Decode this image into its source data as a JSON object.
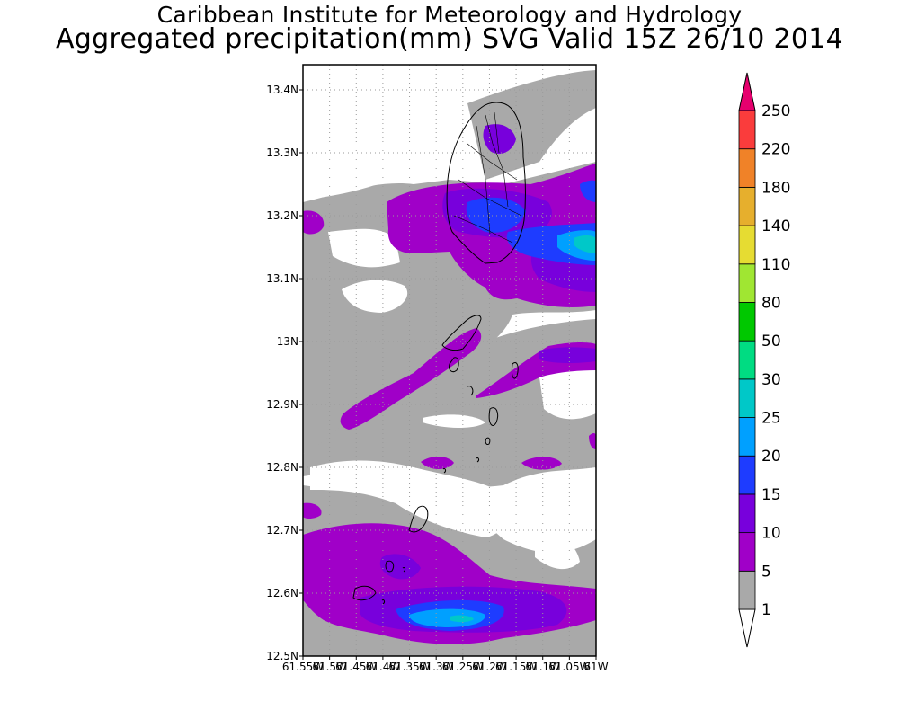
{
  "title": "Caribbean Institute for Meteorology and Hydrology",
  "subtitle": "Aggregated precipitation(mm) SVG Valid 15Z 26/10 2014",
  "map": {
    "lat_ticks": [
      "13.4N",
      "13.3N",
      "13.2N",
      "13.1N",
      "13N",
      "12.9N",
      "12.8N",
      "12.7N",
      "12.6N",
      "12.5N"
    ],
    "lon_ticks": [
      "61.55W",
      "61.5W",
      "61.45W",
      "61.4W",
      "61.35W",
      "61.3W",
      "61.25W",
      "61.2W",
      "61.15W",
      "61.1W",
      "61.05W",
      "61W"
    ],
    "lat_range": [
      12.5,
      13.44
    ],
    "lon_range": [
      -61.55,
      -61.0
    ],
    "grid": "dotted"
  },
  "legend": {
    "unit": "mm",
    "levels": [
      "1",
      "5",
      "10",
      "15",
      "20",
      "25",
      "30",
      "50",
      "80",
      "110",
      "140",
      "180",
      "220",
      "250"
    ],
    "colors": {
      "lt1": "#ffffff",
      "1-5": "#a9a9a9",
      "5-10": "#a000c8",
      "10-15": "#7800dc",
      "15-20": "#1e3cff",
      "20-25": "#00a0ff",
      "25-30": "#00c8c8",
      "30-50": "#00dc82",
      "50-80": "#00c800",
      "80-110": "#a0e632",
      "110-140": "#e6dc32",
      "140-180": "#e6af2d",
      "180-220": "#f08228",
      "220-250": "#fa3c3c",
      "gt250": "#e6006e"
    }
  }
}
